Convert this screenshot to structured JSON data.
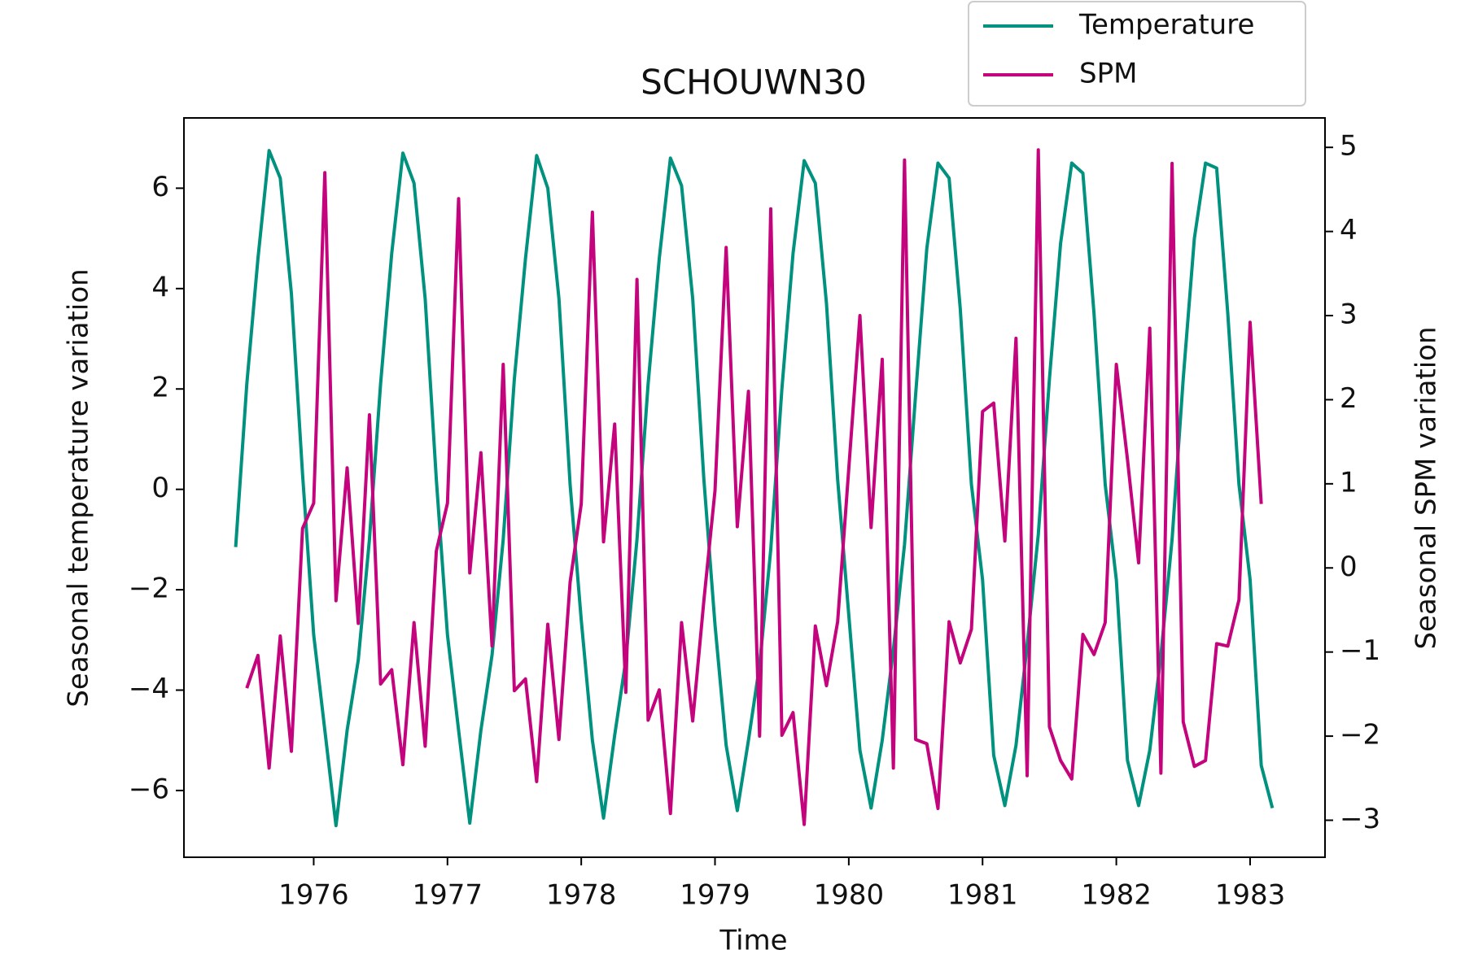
{
  "chart_data": {
    "type": "line",
    "title": "SCHOUWN30",
    "xlabel": "Time",
    "ylabel": "Seasonal temperature variation",
    "y2label": "Seasonal SPM variation",
    "x": [
      1975.4167,
      1975.5,
      1975.5833,
      1975.6667,
      1975.75,
      1975.8333,
      1975.9167,
      1976.0,
      1976.0833,
      1976.1667,
      1976.25,
      1976.3333,
      1976.4167,
      1976.5,
      1976.5833,
      1976.6667,
      1976.75,
      1976.8333,
      1976.9167,
      1977.0,
      1977.0833,
      1977.1667,
      1977.25,
      1977.3333,
      1977.4167,
      1977.5,
      1977.5833,
      1977.6667,
      1977.75,
      1977.8333,
      1977.9167,
      1978.0,
      1978.0833,
      1978.1667,
      1978.25,
      1978.3333,
      1978.4167,
      1978.5,
      1978.5833,
      1978.6667,
      1978.75,
      1978.8333,
      1978.9167,
      1979.0,
      1979.0833,
      1979.1667,
      1979.25,
      1979.3333,
      1979.4167,
      1979.5,
      1979.5833,
      1979.6667,
      1979.75,
      1979.8333,
      1979.9167,
      1980.0,
      1980.0833,
      1980.1667,
      1980.25,
      1980.3333,
      1980.4167,
      1980.5,
      1980.5833,
      1980.6667,
      1980.75,
      1980.8333,
      1980.9167,
      1981.0,
      1981.0833,
      1981.1667,
      1981.25,
      1981.3333,
      1981.4167,
      1981.5,
      1981.5833,
      1981.6667,
      1981.75,
      1981.8333,
      1981.9167,
      1982.0,
      1982.0833,
      1982.1667,
      1982.25,
      1982.3333,
      1982.4167,
      1982.5,
      1982.5833,
      1982.6667,
      1982.75,
      1982.8333,
      1982.9167,
      1983.0,
      1983.0833,
      1983.1667
    ],
    "series": [
      {
        "name": "Temperature",
        "color": "#00917f",
        "axis": "y",
        "values": [
          -1.15,
          2.1,
          4.6,
          6.75,
          6.2,
          3.9,
          0.3,
          -2.9,
          -4.8,
          -6.7,
          -4.8,
          -3.4,
          -1.0,
          2.1,
          4.7,
          6.7,
          6.1,
          3.8,
          0.2,
          -2.9,
          -4.8,
          -6.65,
          -4.8,
          -3.3,
          -1.0,
          2.2,
          4.6,
          6.65,
          6.0,
          3.8,
          0.1,
          -2.6,
          -5.0,
          -6.55,
          -4.9,
          -3.4,
          -1.0,
          2.1,
          4.6,
          6.6,
          6.05,
          3.8,
          0.2,
          -2.7,
          -5.1,
          -6.4,
          -5.0,
          -3.5,
          -1.2,
          2.0,
          4.7,
          6.55,
          6.1,
          3.7,
          0.2,
          -2.5,
          -5.2,
          -6.35,
          -5.0,
          -3.2,
          -1.1,
          1.9,
          4.8,
          6.5,
          6.2,
          3.6,
          0.1,
          -1.8,
          -5.3,
          -6.3,
          -5.1,
          -3.1,
          -0.9,
          2.2,
          4.9,
          6.5,
          6.3,
          3.5,
          0.1,
          -1.8,
          -5.4,
          -6.3,
          -5.2,
          -3.3,
          -1.0,
          2.2,
          5.0,
          6.5,
          6.4,
          3.5,
          0.1,
          -1.8,
          -5.5,
          -6.35
        ]
      },
      {
        "name": "SPM",
        "color": "#c4047c",
        "axis": "y2",
        "values": [
          null,
          -1.43,
          -1.04,
          -2.38,
          -0.81,
          -2.18,
          0.47,
          0.77,
          4.7,
          -0.39,
          1.19,
          -0.66,
          1.82,
          -1.38,
          -1.21,
          -2.34,
          -0.65,
          -2.12,
          0.2,
          0.77,
          4.39,
          -0.06,
          1.37,
          -0.93,
          2.42,
          -1.46,
          -1.32,
          -2.54,
          -0.67,
          -2.04,
          -0.17,
          0.76,
          4.23,
          0.31,
          1.71,
          -1.48,
          3.43,
          -1.81,
          -1.45,
          -2.92,
          -0.65,
          -1.82,
          -0.39,
          0.92,
          3.81,
          0.49,
          2.1,
          -2.0,
          4.27,
          -1.99,
          -1.72,
          -3.05,
          -0.69,
          -1.4,
          -0.64,
          1.18,
          3.0,
          0.48,
          2.48,
          -2.38,
          4.85,
          -2.04,
          -2.09,
          -2.86,
          -0.64,
          -1.13,
          -0.73,
          1.86,
          1.96,
          0.32,
          2.73,
          -2.47,
          4.97,
          -1.89,
          -2.29,
          -2.51,
          -0.79,
          -1.03,
          -0.65,
          2.42,
          1.29,
          0.06,
          2.85,
          -2.44,
          4.81,
          -1.83,
          -2.36,
          -2.29,
          -0.9,
          -0.93,
          -0.38,
          2.92,
          0.76,
          null
        ]
      }
    ],
    "xlim": [
      1975.03,
      1983.56
    ],
    "xticks": [
      1976,
      1977,
      1978,
      1979,
      1980,
      1981,
      1982,
      1983
    ],
    "ylim": [
      -7.33,
      7.4
    ],
    "yticks": [
      {
        "value": -6,
        "label": "−6"
      },
      {
        "value": -4,
        "label": "−4"
      },
      {
        "value": -2,
        "label": "−2"
      },
      0,
      2,
      4,
      6
    ],
    "y2lim": [
      -3.44,
      5.35
    ],
    "y2ticks": [
      {
        "value": -3,
        "label": "−3"
      },
      {
        "value": -2,
        "label": "−2"
      },
      {
        "value": -1,
        "label": "−1"
      },
      0,
      1,
      2,
      3,
      4,
      5
    ],
    "legend": "upper right"
  }
}
